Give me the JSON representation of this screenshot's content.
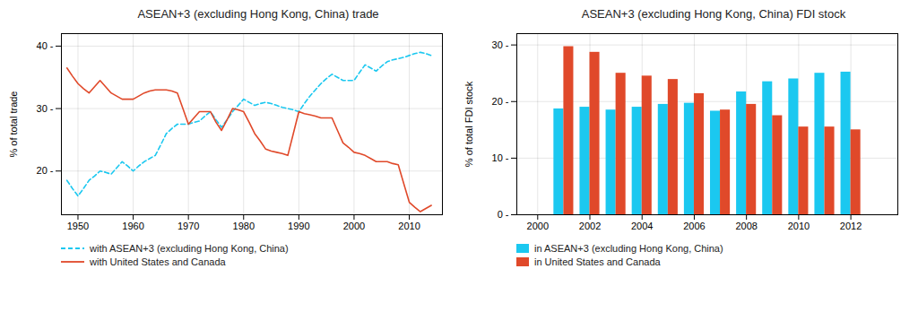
{
  "chart_data": [
    {
      "type": "line",
      "title": "ASEAN+3 (excluding Hong Kong, China) trade",
      "ylabel": "% of total trade",
      "x": [
        1948,
        1949,
        1950,
        1951,
        1952,
        1953,
        1954,
        1955,
        1956,
        1957,
        1958,
        1959,
        1960,
        1961,
        1962,
        1963,
        1964,
        1965,
        1966,
        1967,
        1968,
        1969,
        1970,
        1971,
        1972,
        1973,
        1974,
        1975,
        1976,
        1977,
        1978,
        1979,
        1980,
        1981,
        1982,
        1983,
        1984,
        1985,
        1986,
        1987,
        1988,
        1989,
        1990,
        1991,
        1992,
        1993,
        1994,
        1995,
        1996,
        1997,
        1998,
        1999,
        2000,
        2001,
        2002,
        2003,
        2004,
        2005,
        2006,
        2007,
        2008,
        2009,
        2010,
        2011,
        2012,
        2013,
        2014
      ],
      "series": [
        {
          "name": "with ASEAN+3 (excluding Hong Kong, China)",
          "color": "#1BC8F0",
          "line_style": "dashed",
          "values": [
            18.5,
            17.2,
            16.0,
            17.2,
            18.5,
            19.2,
            20.0,
            19.8,
            19.5,
            20.5,
            21.5,
            20.8,
            20.0,
            20.8,
            21.5,
            22.0,
            22.5,
            24.2,
            26.0,
            26.8,
            27.5,
            27.5,
            27.5,
            27.8,
            28.0,
            28.8,
            29.5,
            28.2,
            27.0,
            28.2,
            29.5,
            30.5,
            31.5,
            31.0,
            30.5,
            30.8,
            31.0,
            30.8,
            30.5,
            30.2,
            30.0,
            29.8,
            29.5,
            30.8,
            32.0,
            33.0,
            34.0,
            34.8,
            35.5,
            35.0,
            34.5,
            34.5,
            34.5,
            35.8,
            37.0,
            36.5,
            36.0,
            36.8,
            37.5,
            37.8,
            38.0,
            38.2,
            38.5,
            38.8,
            39.0,
            38.8,
            38.5
          ]
        },
        {
          "name": "with United States and Canada",
          "color": "#E0492A",
          "line_style": "solid",
          "values": [
            36.5,
            35.2,
            34.0,
            33.2,
            32.5,
            33.5,
            34.5,
            33.5,
            32.5,
            32.0,
            31.5,
            31.5,
            31.5,
            32.0,
            32.5,
            32.8,
            33.0,
            33.0,
            33.0,
            32.8,
            32.5,
            30.0,
            27.5,
            28.5,
            29.5,
            29.5,
            29.5,
            27.8,
            26.5,
            28.2,
            30.0,
            29.8,
            29.5,
            27.8,
            26.0,
            24.8,
            23.5,
            23.2,
            23.0,
            22.8,
            22.5,
            26.0,
            29.5,
            29.2,
            29.0,
            28.8,
            28.5,
            28.5,
            28.5,
            26.5,
            24.5,
            23.8,
            23.0,
            22.8,
            22.5,
            22.0,
            21.5,
            21.5,
            21.5,
            21.2,
            21.0,
            18.0,
            15.0,
            14.2,
            13.5,
            14.0,
            14.5
          ]
        }
      ],
      "xlim": [
        1947,
        2016
      ],
      "ylim": [
        13,
        42
      ],
      "xticks": [
        1950,
        1960,
        1970,
        1980,
        1990,
        2000,
        2010
      ],
      "yticks": [
        {
          "value": 20,
          "label": "20 -"
        },
        {
          "value": 30,
          "label": "30 -"
        },
        {
          "value": 40,
          "label": "40 -"
        }
      ],
      "grid": true,
      "legend": "bottom"
    },
    {
      "type": "bar",
      "title": "ASEAN+3 (excluding Hong Kong, China) FDI stock",
      "ylabel": "% of total FDI stock",
      "x": [
        2001,
        2002,
        2003,
        2004,
        2005,
        2006,
        2007,
        2008,
        2009,
        2010,
        2011,
        2012
      ],
      "series": [
        {
          "name": "in ASEAN+3 (excluding Hong Kong, China)",
          "color": "#1BC8F0",
          "values": [
            18.7,
            19.0,
            18.5,
            19.0,
            19.5,
            19.7,
            18.3,
            21.7,
            23.5,
            24.0,
            25.0,
            25.2
          ]
        },
        {
          "name": "in United States and Canada",
          "color": "#E0492A",
          "values": [
            29.7,
            28.7,
            25.0,
            24.5,
            23.9,
            21.4,
            18.5,
            19.5,
            17.5,
            15.5,
            15.5,
            15.0
          ]
        }
      ],
      "xlim": [
        1999.2,
        2013.8
      ],
      "ylim": [
        0,
        32
      ],
      "xticks": [
        2000,
        2002,
        2004,
        2006,
        2008,
        2010,
        2012
      ],
      "yticks": [
        {
          "value": 0,
          "label": "0 -"
        },
        {
          "value": 10,
          "label": "10 -"
        },
        {
          "value": 20,
          "label": "20 -"
        },
        {
          "value": 30,
          "label": "30 -"
        }
      ],
      "grid": true,
      "legend": "bottom"
    }
  ]
}
